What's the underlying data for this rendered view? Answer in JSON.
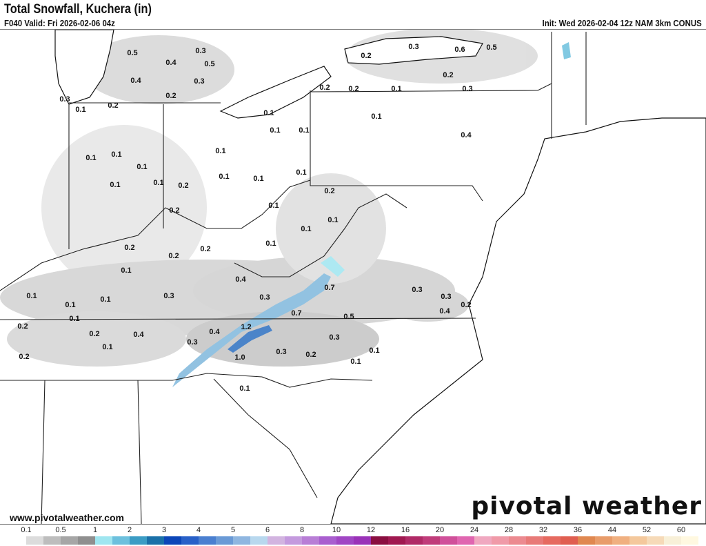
{
  "header": {
    "title": "Total Snowfall, Kuchera (in)",
    "valid": "F040 Valid: Fri 2026-02-06 04z",
    "init": "Init: Wed 2026-02-04 12z NAM 3km CONUS"
  },
  "footer": {
    "website": "www.pivotalweather.com",
    "logo": "pivotal weather"
  },
  "map": {
    "region": "Eastern United States",
    "point_labels": [
      "0.5",
      "0.3",
      "0.4",
      "0.5",
      "0.4",
      "0.3",
      "0.2",
      "0.3",
      "0.1",
      "0.2",
      "0.2",
      "0.3",
      "0.6",
      "0.5",
      "0.2",
      "0.2",
      "0.2",
      "0.1",
      "0.3",
      "0.1",
      "0.1",
      "0.1",
      "0.1",
      "0.4",
      "0.1",
      "0.1",
      "0.1",
      "0.1",
      "0.1",
      "0.1",
      "0.1",
      "0.1",
      "0.1",
      "0.2",
      "0.2",
      "0.1",
      "0.2",
      "0.1",
      "0.1",
      "0.1",
      "0.2",
      "0.2",
      "0.2",
      "0.1",
      "0.4",
      "0.7",
      "0.3",
      "0.3",
      "0.1",
      "0.3",
      "0.3",
      "0.1",
      "0.2",
      "0.1",
      "0.4",
      "0.7",
      "0.5",
      "0.1",
      "0.2",
      "1.2",
      "0.4",
      "0.2",
      "0.4",
      "0.3",
      "0.3",
      "0.1",
      "0.1",
      "0.3",
      "0.2",
      "1.0",
      "0.1",
      "0.2",
      "0.1"
    ]
  },
  "legend": {
    "ticks": [
      "0.1",
      "0.5",
      "1",
      "2",
      "3",
      "4",
      "5",
      "6",
      "8",
      "10",
      "12",
      "16",
      "20",
      "24",
      "28",
      "32",
      "36",
      "44",
      "52",
      "60"
    ],
    "colors": [
      "#ffffff",
      "#dcdcdc",
      "#bdbdbd",
      "#a6a6a6",
      "#8f8f8f",
      "#9fe6f0",
      "#6cc0dd",
      "#3b9cc4",
      "#1a70a8",
      "#0c46b8",
      "#2860c8",
      "#4a7fd0",
      "#6a9ad6",
      "#8fb6e0",
      "#b8d8ee",
      "#d2b4e0",
      "#c49ade",
      "#b87ed6",
      "#a95ecf",
      "#a046c4",
      "#9a32b8",
      "#8a0e40",
      "#a01850",
      "#b02a66",
      "#c03c7a",
      "#d0509a",
      "#e066b0",
      "#f0a8c0",
      "#f09aa8",
      "#ec8a90",
      "#e87a78",
      "#e66a60",
      "#e05e50",
      "#e08850",
      "#e89c6a",
      "#f0b080",
      "#f4c89c",
      "#f6dab8",
      "#f8f0d8",
      "#fff8e0"
    ]
  }
}
